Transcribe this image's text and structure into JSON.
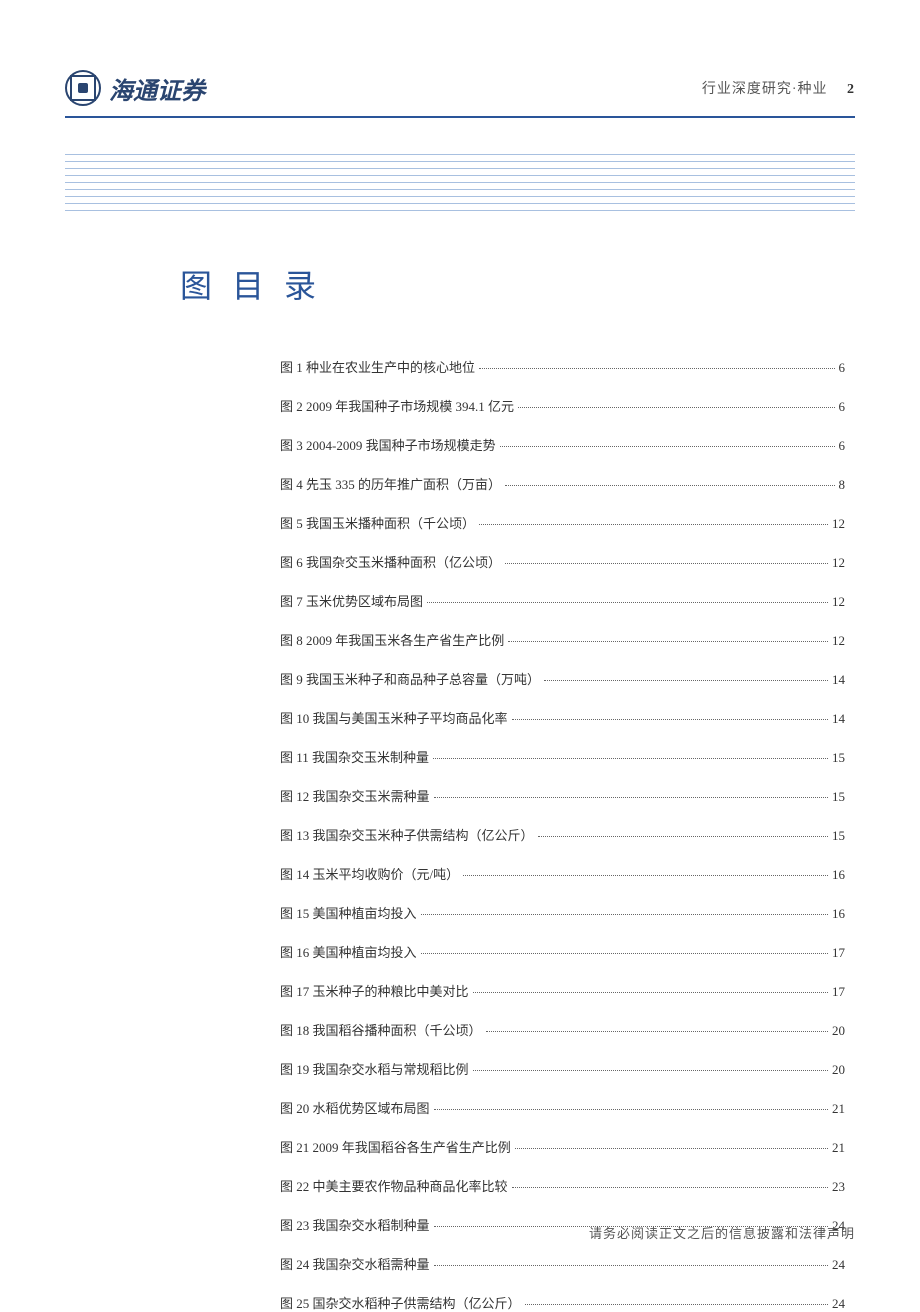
{
  "header": {
    "logo_text": "海通证券",
    "breadcrumb": "行业深度研究·种业",
    "page_number": "2"
  },
  "styling": {
    "primary_color": "#2a5599",
    "logo_color": "#2a4570",
    "line_color": "#a8c0e0",
    "text_color": "#333333",
    "header_text_color": "#555555",
    "title_fontsize": 32,
    "entry_fontsize": 13,
    "header_fontsize": 14,
    "num_horizontal_lines": 9,
    "line_spacing": 7
  },
  "title": "图 目 录",
  "toc_entries": [
    {
      "label": "图 1 种业在农业生产中的核心地位",
      "page": "6"
    },
    {
      "label": "图 2  2009 年我国种子市场规模 394.1 亿元",
      "page": "6"
    },
    {
      "label": "图 3  2004-2009 我国种子市场规模走势",
      "page": "6"
    },
    {
      "label": "图 4 先玉 335 的历年推广面积（万亩）",
      "page": "8"
    },
    {
      "label": "图 5 我国玉米播种面积（千公顷）",
      "page": "12"
    },
    {
      "label": "图 6 我国杂交玉米播种面积（亿公顷）",
      "page": "12"
    },
    {
      "label": "图 7 玉米优势区域布局图",
      "page": "12"
    },
    {
      "label": "图 8  2009 年我国玉米各生产省生产比例",
      "page": "12"
    },
    {
      "label": "图 9 我国玉米种子和商品种子总容量（万吨）",
      "page": "14"
    },
    {
      "label": "图 10 我国与美国玉米种子平均商品化率",
      "page": "14"
    },
    {
      "label": "图 11 我国杂交玉米制种量",
      "page": "15"
    },
    {
      "label": "图 12 我国杂交玉米需种量",
      "page": "15"
    },
    {
      "label": "图 13 我国杂交玉米种子供需结构（亿公斤）",
      "page": "15"
    },
    {
      "label": "图 14 玉米平均收购价（元/吨）",
      "page": "16"
    },
    {
      "label": "图 15 美国种植亩均投入",
      "page": "16"
    },
    {
      "label": "图 16 美国种植亩均投入",
      "page": "17"
    },
    {
      "label": "图 17 玉米种子的种粮比中美对比",
      "page": "17"
    },
    {
      "label": "图 18 我国稻谷播种面积（千公顷）",
      "page": "20"
    },
    {
      "label": "图 19 我国杂交水稻与常规稻比例",
      "page": "20"
    },
    {
      "label": "图 20 水稻优势区域布局图",
      "page": "21"
    },
    {
      "label": "图 21 2009 年我国稻谷各生产省生产比例",
      "page": "21"
    },
    {
      "label": "图 22 中美主要农作物品种商品化率比较",
      "page": "23"
    },
    {
      "label": "图 23 我国杂交水稻制种量",
      "page": "24"
    },
    {
      "label": "图 24 我国杂交水稻需种量",
      "page": "24"
    },
    {
      "label": "图 25 国杂交水稻种子供需结构（亿公斤）",
      "page": "24"
    }
  ],
  "footer": "请务必阅读正文之后的信息披露和法律声明"
}
